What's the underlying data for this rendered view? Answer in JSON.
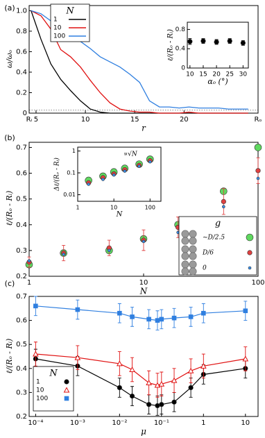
{
  "chart_data": [
    {
      "type": "line",
      "panel": "(a)",
      "xlabel": "r",
      "ylabel": "ω/ωₒ",
      "legend_title": "N",
      "x": [
        4.5,
        5.5,
        6.5,
        7.5,
        8.5,
        9.5,
        10.5,
        11.5,
        12.5,
        13.5,
        14.5,
        15.5,
        16.5,
        17.5,
        18.5,
        19.5,
        20.5,
        21.5,
        22.5,
        23.5,
        24.5,
        25.5,
        26.5
      ],
      "series": [
        {
          "name": "1",
          "color": "#000000",
          "values": [
            1.0,
            0.72,
            0.48,
            0.33,
            0.22,
            0.12,
            0.04,
            0.01,
            0,
            0,
            0,
            0,
            0,
            0,
            0,
            0,
            0,
            0,
            0,
            0,
            0,
            0,
            0
          ]
        },
        {
          "name": "10",
          "color": "#e01010",
          "values": [
            1.0,
            0.95,
            0.82,
            0.62,
            0.55,
            0.45,
            0.32,
            0.2,
            0.1,
            0.04,
            0.02,
            0.01,
            0.01,
            0,
            0,
            0,
            0.01,
            0,
            0,
            0,
            0,
            0,
            0
          ]
        },
        {
          "name": "100",
          "color": "#2f7fe0",
          "values": [
            1.0,
            0.97,
            0.9,
            0.8,
            0.75,
            0.7,
            0.63,
            0.55,
            0.5,
            0.45,
            0.38,
            0.3,
            0.12,
            0.06,
            0.06,
            0.05,
            0.06,
            0.05,
            0.05,
            0.05,
            0.04,
            0.04,
            0.04
          ]
        }
      ],
      "xlim": [
        4.3,
        27.5
      ],
      "xticks": [
        {
          "value": 4.3,
          "label": "Rᵢ"
        },
        5,
        10,
        15,
        20,
        {
          "value": 27.5,
          "label": "Rₒ"
        }
      ],
      "ylim": [
        0,
        1.05
      ],
      "yticks": [
        0,
        0.2,
        0.4,
        0.6,
        0.8,
        {
          "value": 1,
          "label": "1.0"
        }
      ]
    },
    {
      "type": "scatter",
      "xlabel": "αₒ (°)",
      "ylabel": "ℓ/(Rₒ - Rᵢ)",
      "series": [
        {
          "color": "#000000",
          "marker": "circle",
          "x": [
            10,
            15,
            20,
            25,
            30
          ],
          "values": [
            0.55,
            0.56,
            0.54,
            0.56,
            0.52
          ],
          "errors": [
            0.06,
            0.05,
            0.05,
            0.05,
            0.05
          ]
        }
      ],
      "xlim": [
        9,
        32
      ],
      "xticks": [
        10,
        15,
        20,
        25,
        30
      ],
      "ylim": [
        0,
        0.95
      ],
      "yticks": [
        0,
        0.4,
        0.8
      ]
    },
    {
      "type": "scatter",
      "panel": "(b)",
      "xlabel": "N",
      "ylabel": "ℓ/(Rₒ - Rᵢ)",
      "legend_title": "g",
      "xlog": true,
      "series": [
        {
          "name": "~D/2.5",
          "color": "#5fd85f",
          "marker": "circle-large",
          "x": [
            1,
            2,
            5,
            10,
            20,
            50,
            100
          ],
          "values": [
            0.245,
            0.29,
            0.3,
            0.345,
            0.4,
            0.53,
            0.7
          ]
        },
        {
          "name": "D/6",
          "color": "#e04040",
          "marker": "circle",
          "x": [
            1,
            2,
            5,
            10,
            20,
            50,
            100
          ],
          "values": [
            0.255,
            0.29,
            0.31,
            0.34,
            0.39,
            0.49,
            0.61
          ],
          "errors": [
            0.02,
            0.03,
            0.03,
            0.04,
            0.04,
            0.05,
            0.05
          ]
        },
        {
          "name": "0",
          "color": "#3a8ee6",
          "marker": "circle-small",
          "x": [
            1,
            2,
            5,
            10,
            20,
            50,
            100
          ],
          "values": [
            0.26,
            0.285,
            0.3,
            0.335,
            0.37,
            0.47,
            0.58
          ]
        }
      ],
      "xlim": [
        1,
        100
      ],
      "xticks": [
        1,
        10,
        100
      ],
      "ylim": [
        0.2,
        0.72
      ],
      "yticks": [
        0.2,
        0.3,
        0.4,
        0.5,
        0.6,
        0.7
      ]
    },
    {
      "type": "scatter",
      "xlabel": "N",
      "ylabel": "Δℓ/(Rₒ - Rᵢ)",
      "xlog": true,
      "ylog": true,
      "annotation": "∝√N",
      "series": [
        {
          "color": "#5fd85f",
          "marker": "circle-large",
          "x": [
            2,
            5,
            10,
            20,
            50,
            100
          ],
          "values": [
            0.045,
            0.07,
            0.11,
            0.16,
            0.25,
            0.42
          ]
        },
        {
          "color": "#e04040",
          "marker": "circle",
          "x": [
            2,
            5,
            10,
            20,
            50,
            100
          ],
          "values": [
            0.035,
            0.06,
            0.09,
            0.14,
            0.22,
            0.36
          ]
        },
        {
          "color": "#3a8ee6",
          "marker": "circle-small",
          "x": [
            2,
            5,
            10,
            20,
            50,
            100
          ],
          "values": [
            0.03,
            0.05,
            0.08,
            0.12,
            0.2,
            0.32
          ]
        }
      ],
      "xlim": [
        1,
        200
      ],
      "xticks": [
        1,
        10,
        100
      ],
      "ylim": [
        0.005,
        1.5
      ],
      "yticks": [
        0.01,
        0.1,
        1
      ]
    },
    {
      "type": "scatter",
      "panel": "(c)",
      "xlabel": "μ",
      "ylabel": "ℓ/(Rₒ - Rᵢ)",
      "legend_title": "N",
      "xlog": true,
      "connect": true,
      "series": [
        {
          "name": "1",
          "color": "#000000",
          "marker": "circle",
          "x": [
            0.0001,
            0.001,
            0.01,
            0.02,
            0.05,
            0.08,
            0.1,
            0.2,
            0.5,
            1,
            10
          ],
          "values": [
            0.44,
            0.41,
            0.32,
            0.285,
            0.25,
            0.245,
            0.25,
            0.26,
            0.32,
            0.375,
            0.4
          ],
          "errors": [
            0.04,
            0.04,
            0.04,
            0.04,
            0.04,
            0.04,
            0.04,
            0.04,
            0.04,
            0.04,
            0.04
          ]
        },
        {
          "name": "10",
          "color": "#e01010",
          "marker": "triangle",
          "x": [
            0.0001,
            0.001,
            0.01,
            0.02,
            0.05,
            0.08,
            0.1,
            0.2,
            0.5,
            1,
            10
          ],
          "values": [
            0.46,
            0.445,
            0.42,
            0.395,
            0.34,
            0.33,
            0.335,
            0.35,
            0.39,
            0.41,
            0.44
          ],
          "errors": [
            0.05,
            0.05,
            0.05,
            0.05,
            0.05,
            0.05,
            0.05,
            0.05,
            0.05,
            0.05,
            0.05
          ]
        },
        {
          "name": "100",
          "color": "#2f7fe0",
          "marker": "square",
          "x": [
            0.0001,
            0.001,
            0.01,
            0.02,
            0.05,
            0.08,
            0.1,
            0.2,
            0.5,
            1,
            10
          ],
          "values": [
            0.66,
            0.645,
            0.63,
            0.615,
            0.605,
            0.6,
            0.605,
            0.61,
            0.615,
            0.63,
            0.64
          ],
          "errors": [
            0.04,
            0.04,
            0.04,
            0.04,
            0.04,
            0.04,
            0.04,
            0.04,
            0.04,
            0.04,
            0.04
          ]
        }
      ],
      "xlim": [
        7e-05,
        20
      ],
      "xticks": [
        {
          "value": 0.0001,
          "label": "10⁻⁴"
        },
        {
          "value": 0.001,
          "label": "10⁻³"
        },
        {
          "value": 0.01,
          "label": "10⁻²"
        },
        {
          "value": 0.1,
          "label": "10⁻¹"
        },
        1,
        10
      ],
      "ylim": [
        0.2,
        0.7
      ],
      "yticks": [
        0.2,
        0.3,
        0.4,
        0.5,
        0.6,
        0.7
      ]
    }
  ]
}
